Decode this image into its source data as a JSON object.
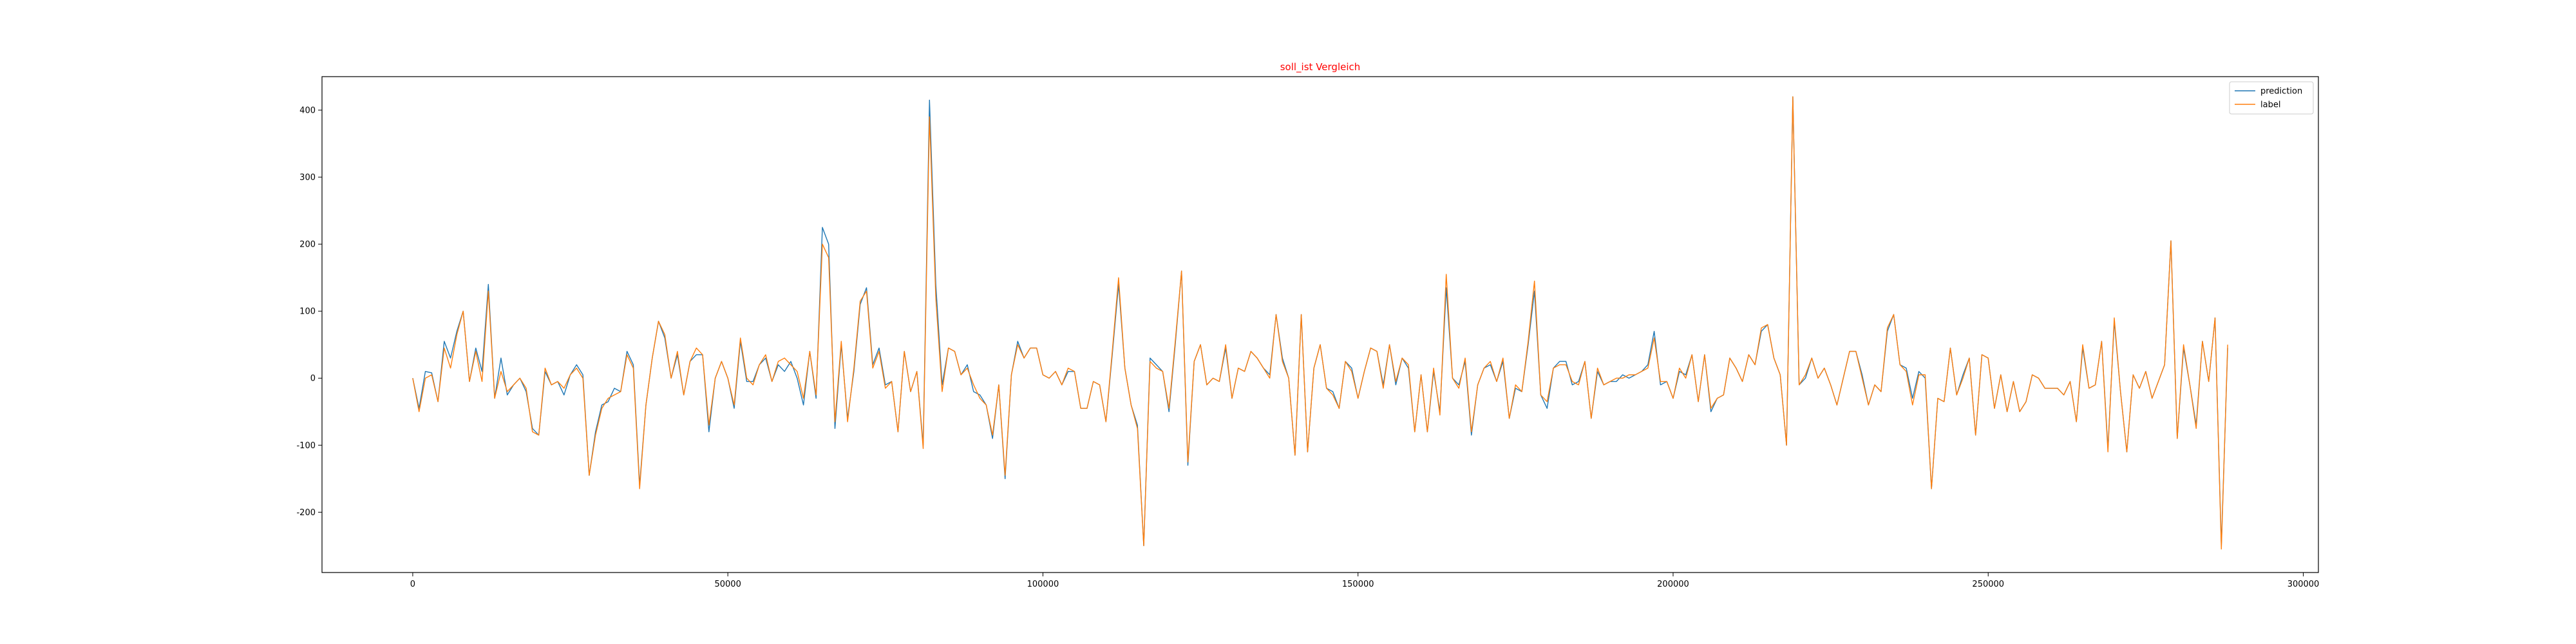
{
  "chart_data": {
    "type": "line",
    "title": "soll_ist Vergleich",
    "xlabel": "",
    "ylabel": "",
    "xlim": [
      -14400,
      302400
    ],
    "ylim": [
      -290,
      450
    ],
    "x_ticks": [
      0,
      50000,
      100000,
      150000,
      200000,
      250000,
      300000
    ],
    "y_ticks": [
      -200,
      -100,
      0,
      100,
      200,
      300,
      400
    ],
    "grid": false,
    "legend_position": "top-right",
    "title_color": "#ff0000",
    "series": [
      {
        "name": "prediction",
        "color": "#1f77b4",
        "x_start": 0,
        "x_step": 1000,
        "values": [
          0,
          -45,
          10,
          8,
          -35,
          55,
          30,
          70,
          100,
          -5,
          45,
          10,
          140,
          -30,
          30,
          -25,
          -10,
          0,
          -20,
          -75,
          -85,
          10,
          -10,
          -5,
          -25,
          5,
          20,
          5,
          -145,
          -80,
          -40,
          -35,
          -15,
          -20,
          40,
          20,
          -160,
          -40,
          30,
          85,
          60,
          0,
          35,
          -25,
          25,
          35,
          35,
          -80,
          0,
          25,
          0,
          -45,
          55,
          -5,
          -5,
          20,
          30,
          -5,
          20,
          10,
          25,
          0,
          -40,
          40,
          -30,
          225,
          200,
          -75,
          50,
          -60,
          10,
          110,
          135,
          20,
          45,
          -10,
          -5,
          -80,
          40,
          -20,
          10,
          -100,
          415,
          140,
          -10,
          45,
          40,
          5,
          20,
          -20,
          -25,
          -40,
          -90,
          -10,
          -150,
          5,
          55,
          30,
          45,
          45,
          5,
          0,
          10,
          -10,
          10,
          10,
          -45,
          -45,
          -5,
          -10,
          -65,
          35,
          140,
          15,
          -40,
          -70,
          -250,
          30,
          20,
          10,
          -50,
          50,
          160,
          -130,
          25,
          50,
          -10,
          0,
          -5,
          45,
          -30,
          15,
          10,
          40,
          30,
          15,
          5,
          95,
          30,
          0,
          -115,
          95,
          -110,
          15,
          50,
          -15,
          -20,
          -45,
          25,
          15,
          -30,
          10,
          45,
          40,
          -10,
          50,
          -10,
          30,
          15,
          -80,
          5,
          -80,
          10,
          -50,
          135,
          0,
          -10,
          25,
          -85,
          -10,
          15,
          20,
          -5,
          25,
          -60,
          -15,
          -20,
          50,
          130,
          -25,
          -45,
          15,
          25,
          25,
          -10,
          -5,
          25,
          -60,
          10,
          -10,
          -5,
          -5,
          5,
          0,
          5,
          10,
          20,
          70,
          -10,
          -5,
          -30,
          10,
          5,
          35,
          -35,
          35,
          -50,
          -30,
          -25,
          30,
          15,
          -5,
          35,
          20,
          70,
          80,
          30,
          5,
          -100,
          420,
          -10,
          0,
          30,
          0,
          15,
          -10,
          -40,
          0,
          40,
          40,
          5,
          -40,
          -10,
          -20,
          70,
          95,
          20,
          15,
          -30,
          10,
          0,
          -165,
          -30,
          -35,
          45,
          -25,
          5,
          30,
          -85,
          35,
          30,
          -45,
          5,
          -50,
          -5,
          -50,
          -35,
          5,
          0,
          -15,
          -15,
          -15,
          -25,
          -5,
          -65,
          45,
          -15,
          -10,
          55,
          -105,
          85,
          -20,
          -110,
          5,
          -15,
          10,
          -30,
          -5,
          20,
          205,
          -90,
          45,
          -10,
          -70,
          55,
          -5,
          90,
          -250,
          45
        ]
      },
      {
        "name": "label",
        "color": "#ff7f0e",
        "x_start": 0,
        "x_step": 1000,
        "values": [
          0,
          -50,
          0,
          5,
          -35,
          45,
          15,
          65,
          100,
          -5,
          40,
          -5,
          130,
          -30,
          10,
          -20,
          -10,
          0,
          -15,
          -80,
          -85,
          15,
          -10,
          -5,
          -15,
          5,
          15,
          0,
          -145,
          -85,
          -45,
          -30,
          -25,
          -20,
          35,
          15,
          -165,
          -40,
          30,
          85,
          65,
          0,
          40,
          -25,
          25,
          45,
          35,
          -70,
          0,
          25,
          0,
          -40,
          60,
          0,
          -10,
          20,
          35,
          -5,
          25,
          30,
          20,
          10,
          -30,
          40,
          -25,
          200,
          180,
          -65,
          55,
          -65,
          15,
          115,
          130,
          15,
          40,
          -15,
          -5,
          -80,
          40,
          -20,
          10,
          -105,
          390,
          120,
          -20,
          45,
          40,
          5,
          15,
          -10,
          -30,
          -40,
          -85,
          -10,
          -145,
          5,
          50,
          30,
          45,
          45,
          5,
          0,
          10,
          -10,
          15,
          10,
          -45,
          -45,
          -5,
          -10,
          -65,
          40,
          150,
          15,
          -40,
          -75,
          -250,
          25,
          15,
          10,
          -45,
          55,
          160,
          -125,
          25,
          50,
          -10,
          0,
          -5,
          50,
          -30,
          15,
          10,
          40,
          30,
          15,
          0,
          95,
          25,
          0,
          -115,
          95,
          -110,
          15,
          50,
          -15,
          -25,
          -45,
          25,
          10,
          -30,
          10,
          45,
          40,
          -15,
          50,
          -5,
          30,
          20,
          -80,
          5,
          -80,
          15,
          -55,
          155,
          0,
          -15,
          30,
          -80,
          -10,
          15,
          25,
          -5,
          30,
          -60,
          -10,
          -20,
          55,
          145,
          -25,
          -35,
          15,
          20,
          20,
          -5,
          -10,
          25,
          -60,
          15,
          -10,
          -5,
          0,
          0,
          5,
          5,
          10,
          15,
          60,
          -5,
          -5,
          -30,
          15,
          0,
          35,
          -35,
          35,
          -45,
          -30,
          -25,
          30,
          15,
          -5,
          35,
          20,
          75,
          80,
          30,
          5,
          -100,
          420,
          -10,
          5,
          30,
          0,
          15,
          -10,
          -40,
          0,
          40,
          40,
          0,
          -40,
          -10,
          -20,
          75,
          95,
          20,
          10,
          -40,
          5,
          5,
          -165,
          -30,
          -35,
          45,
          -25,
          0,
          30,
          -85,
          35,
          30,
          -45,
          5,
          -50,
          -5,
          -50,
          -35,
          5,
          0,
          -15,
          -15,
          -15,
          -25,
          -5,
          -65,
          50,
          -15,
          -10,
          55,
          -110,
          90,
          -20,
          -110,
          5,
          -15,
          10,
          -30,
          -5,
          20,
          205,
          -90,
          50,
          -10,
          -75,
          55,
          -5,
          90,
          -255,
          50
        ]
      }
    ]
  }
}
